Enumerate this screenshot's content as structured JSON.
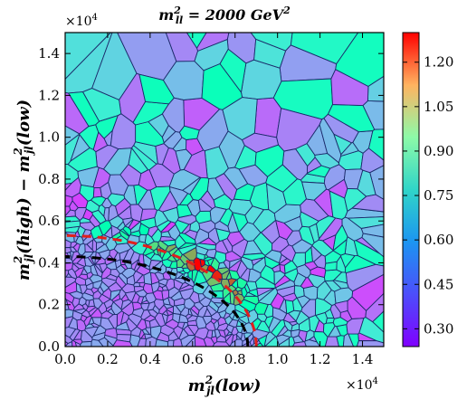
{
  "chart_data": {
    "type": "heatmap",
    "subtype": "voronoi-tessellation",
    "title": {
      "pre": "m",
      "sub": "ll",
      "sup": "2",
      "post": " = 2000 GeV",
      "post_sup": "2"
    },
    "xlabel": {
      "pre": "m",
      "sub": "jl",
      "sup": "2",
      "post": "(low)"
    },
    "ylabel": {
      "pre": "m",
      "sub": "jl",
      "sup": "2",
      "post": "(high) − ",
      "pre2": "m",
      "sub2": "jl",
      "sup2": "2",
      "post2": "(low)"
    },
    "xlim": [
      0,
      15000
    ],
    "ylim": [
      0,
      15000
    ],
    "x_ticks": [
      0,
      2000,
      4000,
      6000,
      8000,
      10000,
      12000,
      14000
    ],
    "x_tick_labels": [
      "0.0",
      "0.2",
      "0.4",
      "0.6",
      "0.8",
      "1.0",
      "1.2",
      "1.4"
    ],
    "y_ticks": [
      0,
      2000,
      4000,
      6000,
      8000,
      10000,
      12000,
      14000
    ],
    "y_tick_labels": [
      "0.0",
      "0.2",
      "0.4",
      "0.6",
      "0.8",
      "1.0",
      "1.2",
      "1.4"
    ],
    "axis_multiplier": "×10",
    "axis_multiplier_exp": "4",
    "colorbar": {
      "range": [
        0.24,
        1.3
      ],
      "ticks": [
        0.3,
        0.45,
        0.6,
        0.75,
        0.9,
        1.05,
        1.2
      ],
      "tick_labels": [
        "0.30",
        "0.45",
        "0.60",
        "0.75",
        "0.90",
        "1.05",
        "1.20"
      ],
      "colormap": "rainbow"
    },
    "boundaries": [
      {
        "style": "dashed",
        "color": "#e0201c",
        "shape": "quarter-ellipse",
        "x_intercept": 9000,
        "y_intercept": 5300
      },
      {
        "style": "dashed",
        "color": "#000000",
        "shape": "quarter-ellipse",
        "x_intercept": 8600,
        "y_intercept": 4300
      }
    ],
    "grid": false,
    "legend": "none"
  }
}
